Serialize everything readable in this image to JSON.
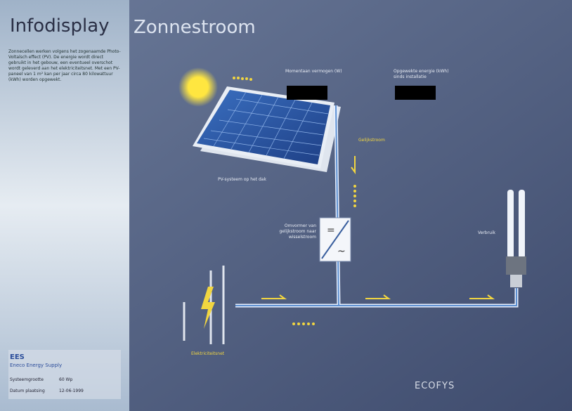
{
  "header": {
    "left_title": "Infodisplay",
    "title": "Zonnestroom"
  },
  "description": "Zonnecellen werken volgens het zogenaamde Photo-Voltaïsch effect (PV). De energie wordt direct gebruikt in het gebouw, een eventueel overschot wordt geleverd aan het elektriciteitsnet. Met een PV-paneel van 1 m² kan per jaar circa 80 kilowattuur (kWh) worden opgewekt.",
  "labels": {
    "power": "Momentaan vermogen (W)",
    "energy": "Opgewekte energie (kWh)",
    "energy_note": "sinds installatie",
    "dc": "Gelijkstroom",
    "panel": "PV-systeem op het dak",
    "inverter": "Omvormer van gelijkstroom naar wisselstroom",
    "consumer": "Verbruik",
    "grid": "Elektriciteitsnet"
  },
  "footer": {
    "brand": "EES",
    "brand_name": "Eneco Energy Supply",
    "rows": [
      [
        "Systeemgrootte",
        "60 Wp"
      ],
      [
        "Datum plaatsing",
        "12-06-1999"
      ]
    ],
    "logo": "ECOFYS"
  }
}
